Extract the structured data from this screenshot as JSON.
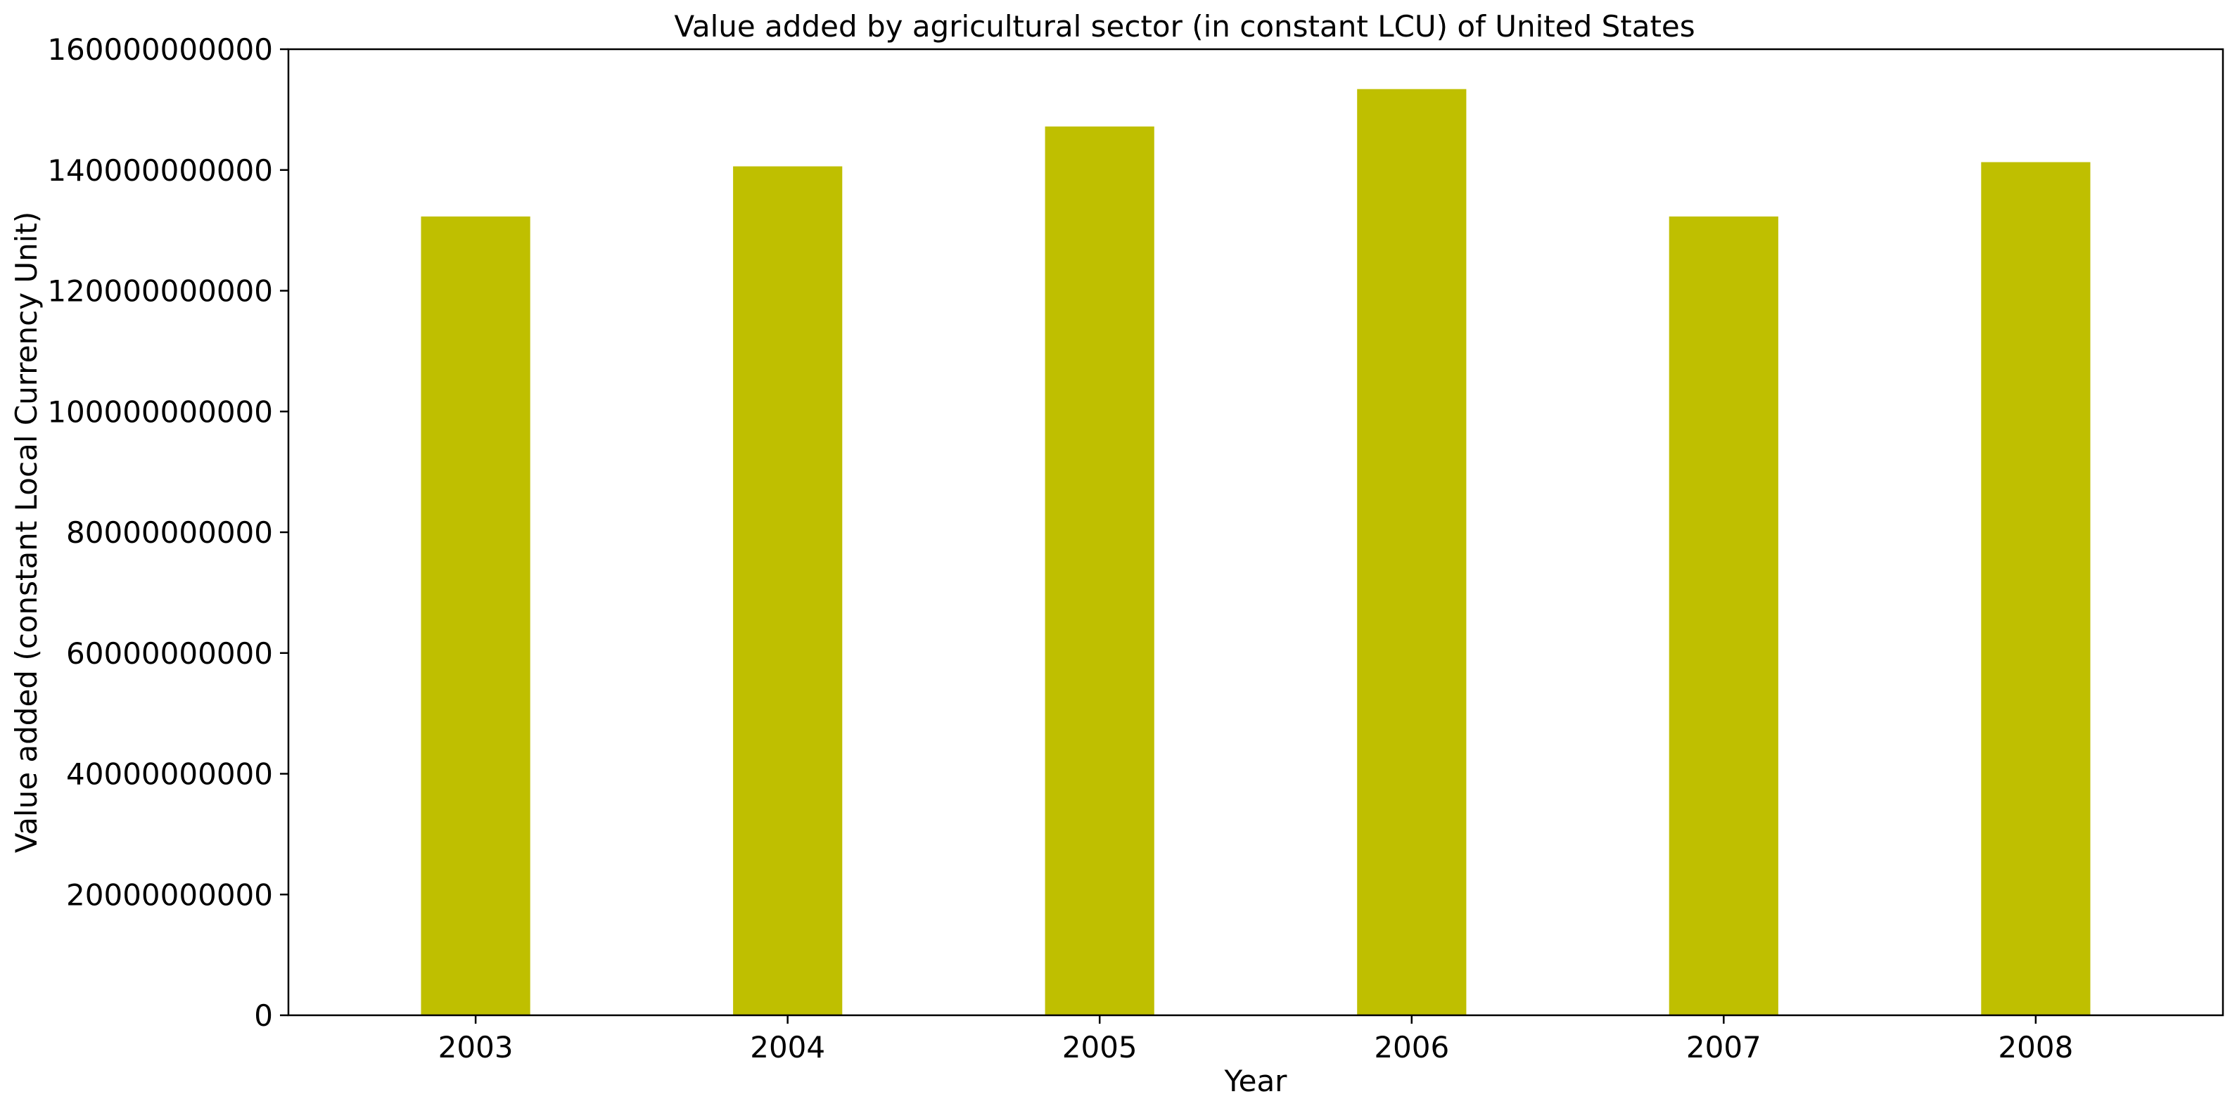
{
  "chart_data": {
    "type": "bar",
    "title": "Value added by agricultural sector (in constant LCU) of United States",
    "xlabel": "Year",
    "ylabel": "Value added (constant Local Currency Unit)",
    "categories": [
      "2003",
      "2004",
      "2005",
      "2006",
      "2007",
      "2008"
    ],
    "values": [
      132300000000,
      140600000000,
      147200000000,
      153400000000,
      132300000000,
      141300000000
    ],
    "ylim": [
      0,
      160000000000
    ],
    "yticks": [
      0,
      20000000000,
      40000000000,
      60000000000,
      80000000000,
      100000000000,
      120000000000,
      140000000000,
      160000000000
    ],
    "ytick_labels": [
      "0",
      "20000000000",
      "40000000000",
      "60000000000",
      "80000000000",
      "100000000000",
      "120000000000",
      "140000000000",
      "160000000000"
    ],
    "bar_color": "#bfbf00",
    "grid": false,
    "legend": "none"
  }
}
